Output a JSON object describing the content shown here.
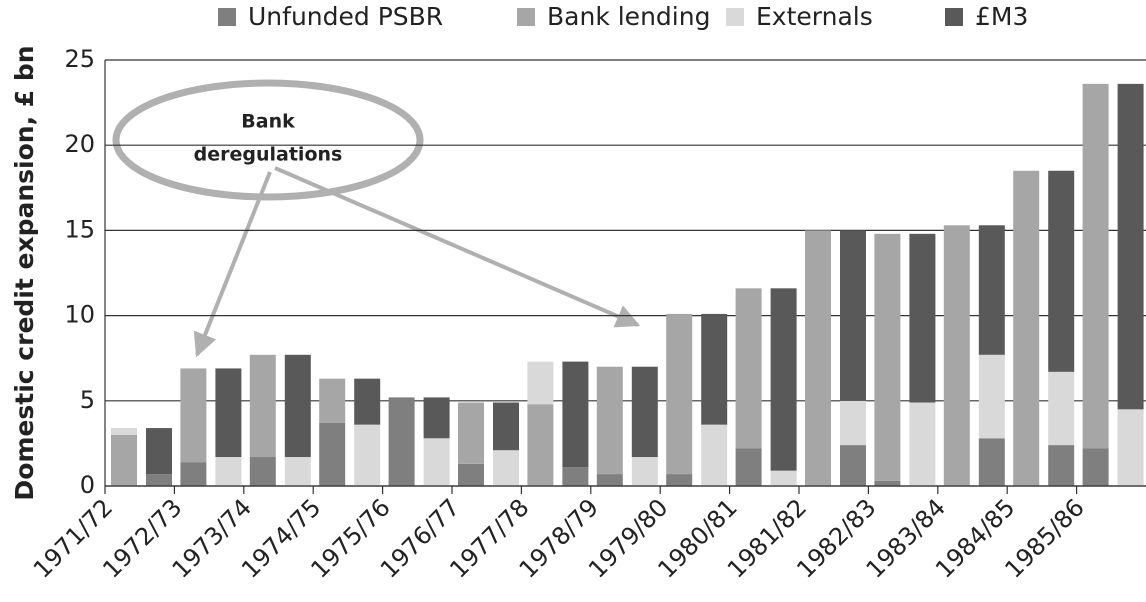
{
  "chart_data": {
    "type": "paired-stacked-bar",
    "y_label": "Domestic credit expansion, £ bn",
    "categories": [
      "1971/72",
      "1972/73",
      "1973/74",
      "1974/75",
      "1975/76",
      "1976/77",
      "1977/78",
      "1978/79",
      "1979/80",
      "1980/81",
      "1981/82",
      "1982/83",
      "1983/84",
      "1984/85",
      "1985/86"
    ],
    "series": [
      {
        "name": "Unfunded PSBR",
        "color": "#7f7f7f",
        "left": [
          0,
          1.4,
          1.7,
          3.7,
          5.2,
          1.3,
          0,
          0.7,
          0.7,
          2.2,
          0,
          0.3,
          0,
          0,
          2.2
        ],
        "right": [
          0.7,
          0,
          0,
          0,
          0,
          0,
          1.1,
          0,
          0,
          0,
          2.4,
          0,
          2.8,
          2.4,
          0
        ]
      },
      {
        "name": "Bank lending",
        "color": "#a6a6a6",
        "left": [
          3.0,
          5.5,
          6.0,
          2.6,
          0,
          3.6,
          4.8,
          6.3,
          9.4,
          9.4,
          15.0,
          14.5,
          15.3,
          18.5,
          21.4
        ],
        "right": null
      },
      {
        "name": "Externals",
        "color": "#d9d9d9",
        "left": [
          0.4,
          0,
          0,
          0,
          0,
          0,
          2.5,
          0,
          0,
          0,
          0,
          0,
          0,
          0,
          0
        ],
        "right": [
          0,
          1.7,
          1.7,
          3.6,
          2.8,
          2.1,
          0,
          1.7,
          3.6,
          0.9,
          2.6,
          4.9,
          4.9,
          4.3,
          4.5
        ]
      },
      {
        "name": "£M3",
        "color": "#595959",
        "left": null,
        "right": [
          2.7,
          5.2,
          6.0,
          2.7,
          2.4,
          2.8,
          6.2,
          5.3,
          6.5,
          10.7,
          10.0,
          9.9,
          7.6,
          11.8,
          19.1
        ]
      }
    ],
    "ylim": [
      0,
      25
    ],
    "yticks": [
      0,
      5,
      10,
      15,
      20,
      25
    ],
    "grid": true,
    "legend": "top",
    "annotation": [
      "Bank",
      "deregulations"
    ]
  }
}
